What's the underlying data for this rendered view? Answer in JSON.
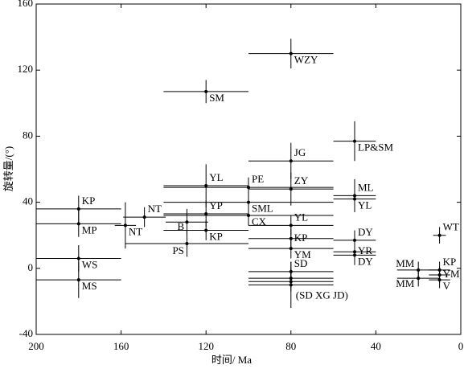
{
  "chart_data": {
    "type": "scatter",
    "xlabel": "时间/ Ma",
    "ylabel": "旋转量/(°)",
    "xlim": [
      200,
      0
    ],
    "ylim": [
      -40,
      160
    ],
    "xticks": [
      200,
      160,
      120,
      80,
      40,
      0
    ],
    "yticks": [
      -40,
      0,
      40,
      80,
      120,
      160
    ],
    "color": "#000000",
    "labels": [
      "KP",
      "MP",
      "WS",
      "MS",
      "NT",
      "NT",
      "B",
      "PS",
      "YL",
      "YP",
      "KP",
      "SM",
      "PE",
      "SML",
      "CX",
      "WZY",
      "JG",
      "ZY",
      "YL",
      "KP",
      "YM",
      "SD",
      null,
      null,
      "(SD XG JD)",
      "LP&SM",
      "ML",
      "YL",
      "DY",
      "YR",
      "DY",
      "WT",
      "MM",
      "MM",
      "KP",
      "YM",
      "V"
    ],
    "x": [
      180,
      180,
      180,
      180,
      158,
      149,
      129,
      129,
      120,
      120,
      120,
      120,
      100,
      100,
      100,
      80,
      80,
      80,
      80,
      80,
      80,
      80,
      80,
      80,
      80,
      50,
      50,
      50,
      50,
      50,
      50,
      10,
      20,
      20,
      10,
      10,
      10
    ],
    "y": [
      36,
      27,
      6,
      -7,
      26,
      31,
      28,
      15,
      50,
      33,
      23,
      107,
      49,
      40,
      32,
      130,
      65,
      48,
      26,
      18,
      12,
      -2,
      -6,
      -8,
      -10,
      77,
      44,
      42,
      17,
      10,
      8,
      20,
      -1,
      -6,
      -1,
      -4,
      -7
    ],
    "xerr": [
      20,
      20,
      20,
      20,
      5,
      10,
      10,
      29,
      20,
      20,
      20,
      20,
      40,
      40,
      40,
      20,
      20,
      20,
      20,
      20,
      20,
      20,
      20,
      20,
      20,
      10,
      10,
      10,
      10,
      10,
      10,
      3,
      10,
      10,
      5,
      5,
      5
    ],
    "yerr": [
      8,
      8,
      8,
      11,
      14,
      6,
      8,
      8,
      13,
      8,
      6,
      7,
      6,
      6,
      6,
      9,
      11,
      10,
      6,
      6,
      6,
      6,
      6,
      6,
      14,
      12,
      10,
      8,
      6,
      6,
      6,
      5,
      5,
      5,
      5,
      5,
      5
    ]
  }
}
